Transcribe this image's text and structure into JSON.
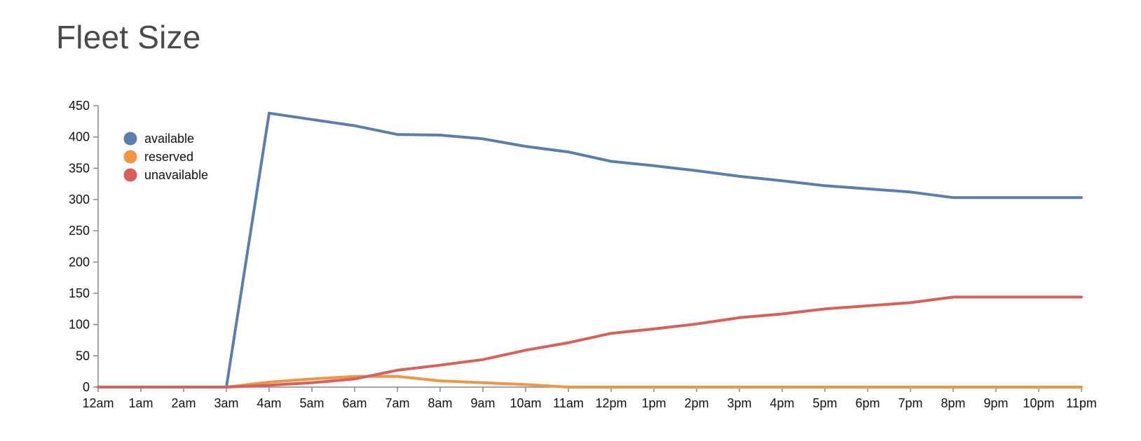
{
  "title": "Fleet Size",
  "chart_data": {
    "type": "line",
    "title": "Fleet Size",
    "xlabel": "",
    "ylabel": "",
    "x": [
      "12am",
      "1am",
      "2am",
      "3am",
      "4am",
      "5am",
      "6am",
      "7am",
      "8am",
      "9am",
      "10am",
      "11am",
      "12pm",
      "1pm",
      "2pm",
      "3pm",
      "4pm",
      "5pm",
      "6pm",
      "7pm",
      "8pm",
      "9pm",
      "10pm",
      "11pm"
    ],
    "y_ticks": [
      0,
      50,
      100,
      150,
      200,
      250,
      300,
      350,
      400,
      450
    ],
    "ylim": [
      0,
      450
    ],
    "grid": false,
    "legend_position": "top-left",
    "series": [
      {
        "name": "available",
        "color": "#5b7fad",
        "values": [
          0,
          0,
          0,
          0,
          438,
          428,
          418,
          404,
          403,
          397,
          385,
          376,
          361,
          354,
          346,
          337,
          330,
          322,
          317,
          312,
          303,
          303,
          303,
          303
        ]
      },
      {
        "name": "reserved",
        "color": "#ef9645",
        "values": [
          0,
          0,
          0,
          0,
          8,
          13,
          17,
          17,
          10,
          7,
          4,
          0,
          0,
          0,
          0,
          0,
          0,
          0,
          0,
          0,
          0,
          0,
          0,
          0
        ]
      },
      {
        "name": "unavailable",
        "color": "#d9605a",
        "values": [
          0,
          0,
          0,
          0,
          3,
          7,
          13,
          27,
          35,
          44,
          59,
          71,
          86,
          93,
          101,
          111,
          117,
          125,
          130,
          135,
          144,
          144,
          144,
          144
        ]
      }
    ]
  }
}
